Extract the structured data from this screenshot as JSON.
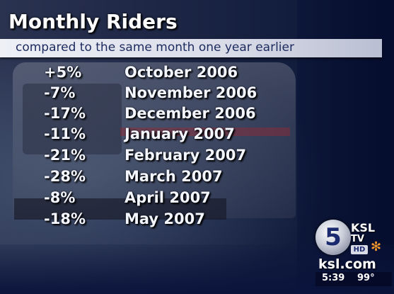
{
  "title": "Monthly Riders",
  "subtitle": "compared to the same month one year earlier",
  "rows": [
    {
      "change": "+5%",
      "month": "October 2006"
    },
    {
      "change": "-7%",
      "month": "November 2006"
    },
    {
      "change": "-17%",
      "month": "December 2006"
    },
    {
      "change": "-11%",
      "month": "January 2007"
    },
    {
      "change": "-21%",
      "month": "February 2007"
    },
    {
      "change": "-28%",
      "month": "March 2007"
    },
    {
      "change": "-8%",
      "month": "April 2007"
    },
    {
      "change": "-18%",
      "month": "May 2007"
    }
  ],
  "station": {
    "channel": "5",
    "call": "KSL",
    "tv": "TV",
    "hd": "HD",
    "site": "ksl.com",
    "time": "5:39",
    "temp": "99°",
    "peacock_icon": "peacock-icon"
  },
  "colors": {
    "title_text": "#ffffff",
    "subtitle_bar": "#eef0f6",
    "subtitle_text": "#1d2a5e",
    "row_text": "#f4f6ff"
  }
}
